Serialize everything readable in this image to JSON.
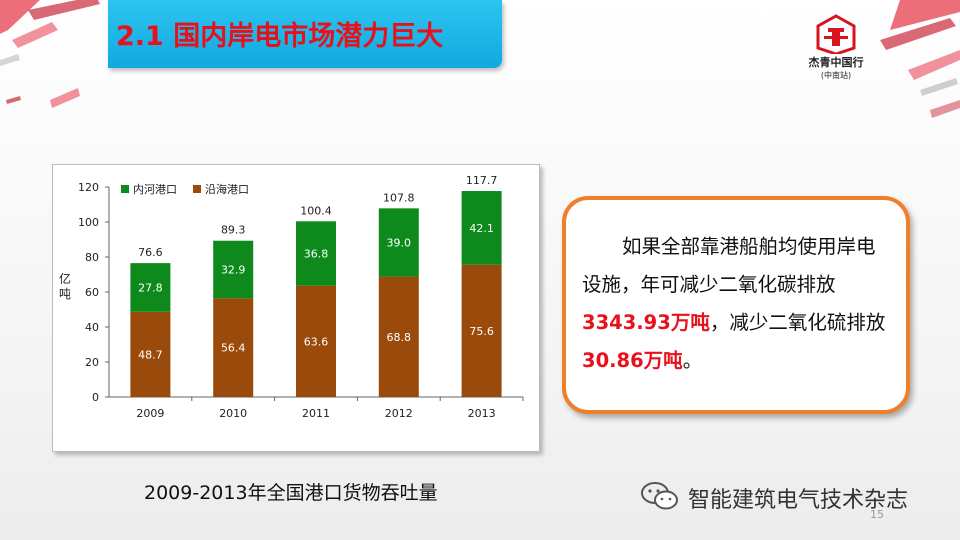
{
  "slide": {
    "title": "2.1 国内岸电市场潜力巨大",
    "page_number": "15"
  },
  "logo": {
    "label": "杰青中国行",
    "sub": "(中南站)"
  },
  "chart_caption": "2009-2013年全国港口货物吞吐量",
  "callout": {
    "part1": "如果全部靠港船舶均使用岸电设施，年可减少二氧化碳排放",
    "value1": "3343.93万吨",
    "part2": "，减少二氧化硫排放",
    "value2": "30.86万吨",
    "part3": "。"
  },
  "watermark": "智能建筑电气技术杂志",
  "colors": {
    "title_bg": "#11a8e0",
    "title_text": "#e8101a",
    "inland": "#0e8a1c",
    "coastal": "#9a4a0a",
    "callout_border": "#f07e2a",
    "highlight": "#e8101a"
  },
  "chart_data": {
    "type": "bar",
    "stacked": true,
    "categories": [
      "2009",
      "2010",
      "2011",
      "2012",
      "2013"
    ],
    "ylabel": "亿吨",
    "ylim": [
      0,
      120
    ],
    "yticks": [
      "0",
      "20",
      "40",
      "60",
      "80",
      "100",
      "120"
    ],
    "legend_position": "top-left",
    "series": [
      {
        "name": "沿海港口",
        "values": [
          48.7,
          56.4,
          63.6,
          68.8,
          75.6
        ],
        "labels": [
          "48.7",
          "56.4",
          "63.6",
          "68.8",
          "75.6"
        ],
        "color": "#9a4a0a"
      },
      {
        "name": "内河港口",
        "values": [
          27.8,
          32.9,
          36.8,
          39.0,
          42.1
        ],
        "labels": [
          "27.8",
          "32.9",
          "36.8",
          "39.0",
          "42.1"
        ],
        "color": "#0e8a1c"
      }
    ],
    "totals": [
      "76.6",
      "89.3",
      "100.4",
      "107.8",
      "117.7"
    ],
    "total_values": [
      76.6,
      89.3,
      100.4,
      107.8,
      117.7
    ]
  }
}
